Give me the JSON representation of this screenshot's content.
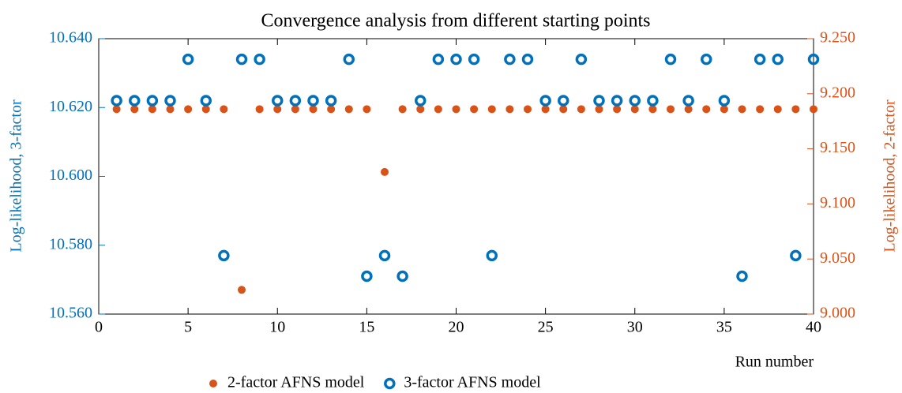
{
  "chart_data": {
    "type": "scatter",
    "title": "Convergence analysis from different starting points",
    "x_label": "Run number",
    "y_label": "Log-likelihood, 3-factor",
    "y2_label": "Log-likelihood, 2-factor",
    "x": [
      1,
      2,
      3,
      4,
      5,
      6,
      7,
      8,
      9,
      10,
      11,
      12,
      13,
      14,
      15,
      16,
      17,
      18,
      19,
      20,
      21,
      22,
      23,
      24,
      25,
      26,
      27,
      28,
      29,
      30,
      31,
      32,
      33,
      34,
      35,
      36,
      37,
      38,
      39,
      40
    ],
    "series": [
      {
        "name": "2-factor AFNS model",
        "color": "#d95319",
        "marker": "filled",
        "axis": "y2",
        "values": [
          9.186,
          9.186,
          9.186,
          9.186,
          9.186,
          9.186,
          9.186,
          9.022,
          9.186,
          9.186,
          9.186,
          9.186,
          9.186,
          9.186,
          9.186,
          9.129,
          9.186,
          9.186,
          9.186,
          9.186,
          9.186,
          9.186,
          9.186,
          9.186,
          9.186,
          9.186,
          9.186,
          9.186,
          9.186,
          9.186,
          9.186,
          9.186,
          9.186,
          9.186,
          9.186,
          9.186,
          9.186,
          9.186,
          9.186,
          9.186
        ]
      },
      {
        "name": "3-factor AFNS model",
        "color": "#0072bd",
        "marker": "open",
        "axis": "y",
        "values": [
          10.622,
          10.622,
          10.622,
          10.622,
          10.634,
          10.622,
          10.577,
          10.634,
          10.634,
          10.622,
          10.622,
          10.622,
          10.622,
          10.634,
          10.571,
          10.577,
          10.571,
          10.622,
          10.634,
          10.634,
          10.634,
          10.577,
          10.634,
          10.634,
          10.622,
          10.622,
          10.634,
          10.622,
          10.622,
          10.622,
          10.622,
          10.634,
          10.622,
          10.634,
          10.622,
          10.571,
          10.634,
          10.634,
          10.577,
          10.634
        ]
      }
    ],
    "xlim": [
      0,
      40
    ],
    "xticks": [
      0,
      5,
      10,
      15,
      20,
      25,
      30,
      35,
      40
    ],
    "ylim": [
      10.56,
      10.64
    ],
    "yticks": [
      {
        "value": 10.56,
        "label": "10.560"
      },
      {
        "value": 10.58,
        "label": "10.580"
      },
      {
        "value": 10.6,
        "label": "10.600"
      },
      {
        "value": 10.62,
        "label": "10.620"
      },
      {
        "value": 10.64,
        "label": "10.640"
      }
    ],
    "y2lim": [
      9.0,
      9.25
    ],
    "y2ticks": [
      {
        "value": 9.0,
        "label": "9.000"
      },
      {
        "value": 9.05,
        "label": "9.050"
      },
      {
        "value": 9.1,
        "label": "9.100"
      },
      {
        "value": 9.15,
        "label": "9.150"
      },
      {
        "value": 9.2,
        "label": "9.200"
      },
      {
        "value": 9.25,
        "label": "9.250"
      }
    ],
    "legend": "bottom"
  }
}
